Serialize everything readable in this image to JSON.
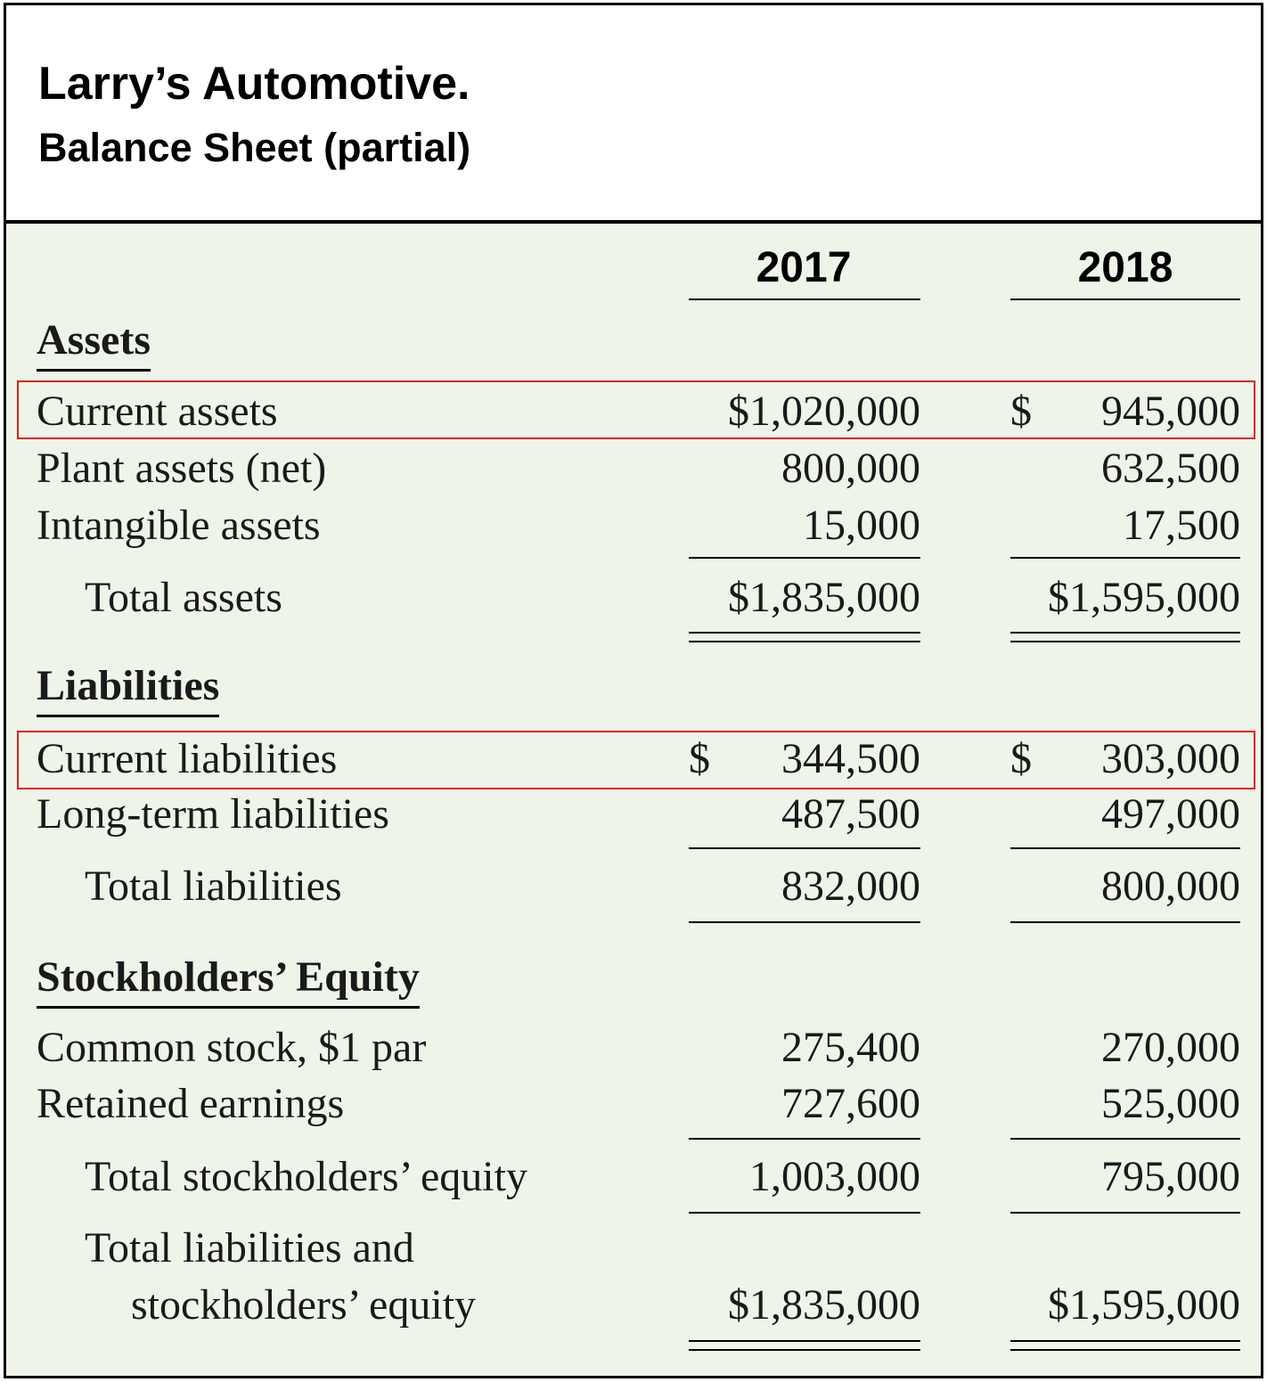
{
  "header": {
    "title": "Larry’s Automotive.",
    "subtitle": "Balance Sheet (partial)"
  },
  "years": [
    "2017",
    "2018"
  ],
  "currency_symbol": "$",
  "highlight_color": "#e02020",
  "sections": {
    "assets": {
      "heading": "Assets",
      "current_assets": {
        "label": "Current assets",
        "v2017": "$1,020,000",
        "v2018": "945,000"
      },
      "plant_assets": {
        "label": "Plant assets (net)",
        "v2017": "800,000",
        "v2018": "632,500"
      },
      "intangible_assets": {
        "label": "Intangible assets",
        "v2017": "15,000",
        "v2018": "17,500"
      },
      "total_assets": {
        "label": "Total assets",
        "v2017": "$1,835,000",
        "v2018": "$1,595,000"
      }
    },
    "liabilities": {
      "heading": "Liabilities",
      "current_liabilities": {
        "label": "Current liabilities",
        "v2017": "344,500",
        "v2018": "303,000"
      },
      "long_term_liabilities": {
        "label": "Long-term liabilities",
        "v2017": "487,500",
        "v2018": "497,000"
      },
      "total_liabilities": {
        "label": "Total liabilities",
        "v2017": "832,000",
        "v2018": "800,000"
      }
    },
    "equity": {
      "heading": "Stockholders’ Equity",
      "common_stock": {
        "label": "Common stock, $1 par",
        "v2017": "275,400",
        "v2018": "270,000"
      },
      "retained_earnings": {
        "label": "Retained earnings",
        "v2017": "727,600",
        "v2018": "525,000"
      },
      "total_equity": {
        "label": "Total stockholders’ equity",
        "v2017": "1,003,000",
        "v2018": "795,000"
      },
      "total_liabilities_equity": {
        "label_line1": "Total liabilities and",
        "label_line2": "stockholders’ equity",
        "v2017": "$1,835,000",
        "v2018": "$1,595,000"
      }
    }
  }
}
